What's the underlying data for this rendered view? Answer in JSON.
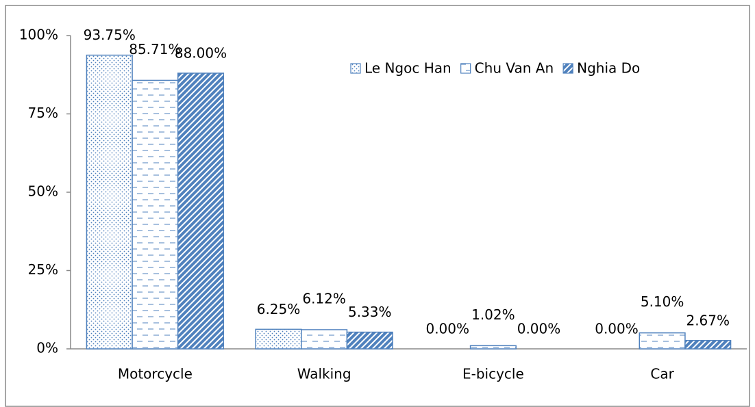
{
  "chart_data": {
    "type": "bar",
    "categories": [
      "Motorcycle",
      "Walking",
      "E-bicycle",
      "Car"
    ],
    "series": [
      {
        "name": "Le Ngoc Han",
        "color": "#4f81bd",
        "values": [
          93.75,
          6.25,
          0,
          0
        ],
        "value_labels": [
          "93.75%",
          "6.25%",
          "0.00%",
          "0.00%"
        ]
      },
      {
        "name": "Chu Van An",
        "color": "#4f81bd",
        "values": [
          85.71,
          6.12,
          1.02,
          5.1
        ],
        "value_labels": [
          "85.71%",
          "6.12%",
          "1.02%",
          "5.10%"
        ]
      },
      {
        "name": "Nghia Do",
        "color": "#4f81bd",
        "values": [
          88.0,
          5.33,
          0,
          2.67
        ],
        "value_labels": [
          "88.00%",
          "5.33%",
          "0.00%",
          "2.67%"
        ]
      }
    ],
    "ylim": [
      0,
      100
    ],
    "yticks": [
      {
        "value": 0,
        "label": "0%"
      },
      {
        "value": 25,
        "label": "25%"
      },
      {
        "value": 50,
        "label": "50%"
      },
      {
        "value": 75,
        "label": "75%"
      },
      {
        "value": 100,
        "label": "100%"
      }
    ],
    "grid": false,
    "legend": "top-right"
  }
}
